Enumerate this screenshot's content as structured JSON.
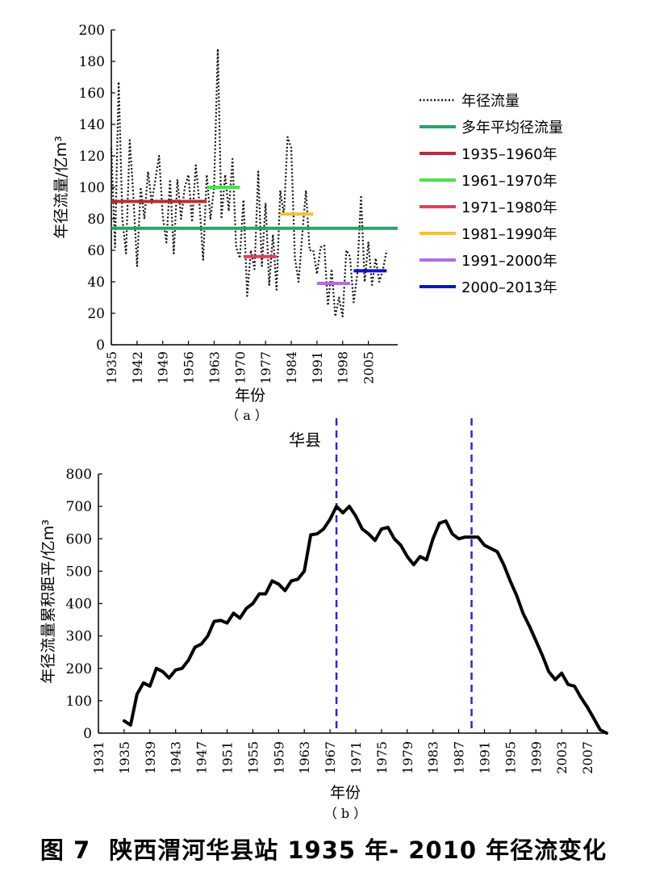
{
  "caption": {
    "figure_no": "图 7",
    "text": "陕西渭河华县站 1935 年- 2010 年径流变化"
  },
  "colors": {
    "axis": "#000000",
    "mean": "#1fa86a",
    "p1935": "#b0303a",
    "p1961": "#4ce04a",
    "p1971": "#e0405a",
    "p1981": "#f0c040",
    "p1991": "#b070e0",
    "p2000": "#0b14d0",
    "change_line": "#2a2ad0"
  },
  "chart_data": [
    {
      "type": "line",
      "panel_label": "（ a ）",
      "xlabel": "年份",
      "ylabel": "年径流量/亿m³",
      "ylim": [
        0,
        200
      ],
      "xlim": [
        1935,
        2013
      ],
      "yticks": [
        0,
        20,
        40,
        60,
        80,
        100,
        120,
        140,
        160,
        180,
        200
      ],
      "xticks": [
        1935,
        1942,
        1949,
        1956,
        1963,
        1970,
        1977,
        1984,
        1991,
        1998,
        2005
      ],
      "grid": false,
      "legend_position": "right",
      "legend": [
        "年径流量",
        "多年平均径流量",
        "1935–1960年",
        "1961–1970年",
        "1971–1980年",
        "1981–1990年",
        "1991–2000年",
        "2000–2013年"
      ],
      "series": [
        {
          "name": "年径流量",
          "style": "dotted",
          "x": [
            1935,
            1936,
            1937,
            1938,
            1939,
            1940,
            1941,
            1942,
            1943,
            1944,
            1945,
            1946,
            1947,
            1948,
            1949,
            1950,
            1951,
            1952,
            1953,
            1954,
            1955,
            1956,
            1957,
            1958,
            1959,
            1960,
            1961,
            1962,
            1963,
            1964,
            1965,
            1966,
            1967,
            1968,
            1969,
            1970,
            1971,
            1972,
            1973,
            1974,
            1975,
            1976,
            1977,
            1978,
            1979,
            1980,
            1981,
            1982,
            1983,
            1984,
            1985,
            1986,
            1987,
            1988,
            1989,
            1990,
            1991,
            1992,
            1993,
            1994,
            1995,
            1996,
            1997,
            1998,
            1999,
            2000,
            2001,
            2002,
            2003,
            2004,
            2005,
            2006,
            2007,
            2008,
            2009,
            2010
          ],
          "y": [
            125,
            62,
            167,
            80,
            58,
            130,
            95,
            50,
            100,
            80,
            110,
            90,
            105,
            120,
            82,
            65,
            105,
            58,
            105,
            80,
            100,
            108,
            78,
            114,
            90,
            54,
            108,
            80,
            100,
            188,
            80,
            108,
            85,
            118,
            62,
            55,
            92,
            31,
            60,
            48,
            110,
            50,
            90,
            38,
            70,
            35,
            98,
            82,
            132,
            125,
            55,
            40,
            70,
            98,
            60,
            60,
            45,
            62,
            63,
            25,
            48,
            18,
            30,
            18,
            60,
            56,
            27,
            45,
            95,
            40,
            65,
            38,
            55,
            40,
            48,
            60
          ]
        },
        {
          "name": "多年平均径流量",
          "segment": {
            "x": [
              1935,
              2013
            ],
            "y": 74
          }
        },
        {
          "name": "1935–1960年",
          "segment": {
            "x": [
              1935,
              1961
            ],
            "y": 91
          }
        },
        {
          "name": "1961–1970年",
          "segment": {
            "x": [
              1961,
              1970
            ],
            "y": 100
          }
        },
        {
          "name": "1971–1980年",
          "segment": {
            "x": [
              1971,
              1980
            ],
            "y": 56
          }
        },
        {
          "name": "1981–1990年",
          "segment": {
            "x": [
              1981,
              1990
            ],
            "y": 83
          }
        },
        {
          "name": "1991–2000年",
          "segment": {
            "x": [
              1991,
              2000
            ],
            "y": 39
          }
        },
        {
          "name": "2000–2013年",
          "segment": {
            "x": [
              2001,
              2010
            ],
            "y": 47
          }
        }
      ]
    },
    {
      "type": "line",
      "panel_label": "（ b ）",
      "xlabel": "年份",
      "ylabel": "年径流量累积距平/亿m³",
      "ylim": [
        0,
        800
      ],
      "xlim": [
        1931,
        2010
      ],
      "yticks": [
        0,
        100,
        200,
        300,
        400,
        500,
        600,
        700,
        800
      ],
      "xticks": [
        1931,
        1935,
        1939,
        1943,
        1947,
        1951,
        1955,
        1959,
        1963,
        1967,
        1971,
        1975,
        1979,
        1983,
        1987,
        1991,
        1995,
        1999,
        2003,
        2007
      ],
      "grid": false,
      "annotation": "华县",
      "change_points": [
        1968,
        1989
      ],
      "series": [
        {
          "name": "",
          "x": [
            1935,
            1936,
            1937,
            1938,
            1939,
            1940,
            1941,
            1942,
            1943,
            1944,
            1945,
            1946,
            1947,
            1948,
            1949,
            1950,
            1951,
            1952,
            1953,
            1954,
            1955,
            1956,
            1957,
            1958,
            1959,
            1960,
            1961,
            1962,
            1963,
            1964,
            1965,
            1966,
            1967,
            1968,
            1969,
            1970,
            1971,
            1972,
            1973,
            1974,
            1975,
            1976,
            1977,
            1978,
            1979,
            1980,
            1981,
            1982,
            1983,
            1984,
            1985,
            1986,
            1987,
            1988,
            1989,
            1990,
            1991,
            1992,
            1993,
            1994,
            1995,
            1996,
            1997,
            1998,
            1999,
            2000,
            2001,
            2002,
            2003,
            2004,
            2005,
            2006,
            2007,
            2008,
            2009,
            2010
          ],
          "y": [
            38,
            25,
            120,
            155,
            145,
            200,
            190,
            170,
            195,
            200,
            225,
            265,
            275,
            300,
            345,
            348,
            340,
            370,
            355,
            385,
            400,
            430,
            430,
            470,
            460,
            440,
            470,
            475,
            500,
            612,
            615,
            630,
            660,
            700,
            680,
            700,
            670,
            630,
            615,
            595,
            630,
            635,
            600,
            580,
            545,
            520,
            545,
            535,
            600,
            648,
            655,
            615,
            600,
            605,
            605,
            605,
            580,
            570,
            560,
            520,
            470,
            425,
            370,
            330,
            285,
            240,
            190,
            165,
            185,
            150,
            145,
            110,
            80,
            45,
            10,
            0
          ]
        }
      ]
    }
  ]
}
